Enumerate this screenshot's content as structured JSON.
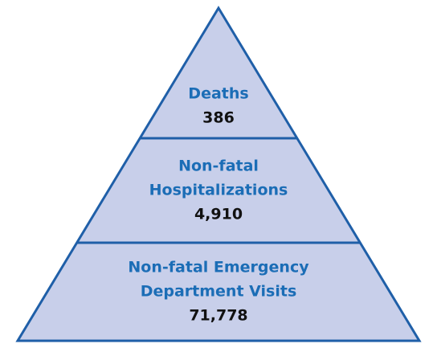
{
  "nodes": [
    {
      "label_lines": [
        "Deaths"
      ],
      "value": "386"
    },
    {
      "label_lines": [
        "Non-fatal",
        "Hospitalizations"
      ],
      "value": "4,910"
    },
    {
      "label_lines": [
        "Non-fatal Emergency",
        "Department Visits"
      ],
      "value": "71,778"
    }
  ]
}
